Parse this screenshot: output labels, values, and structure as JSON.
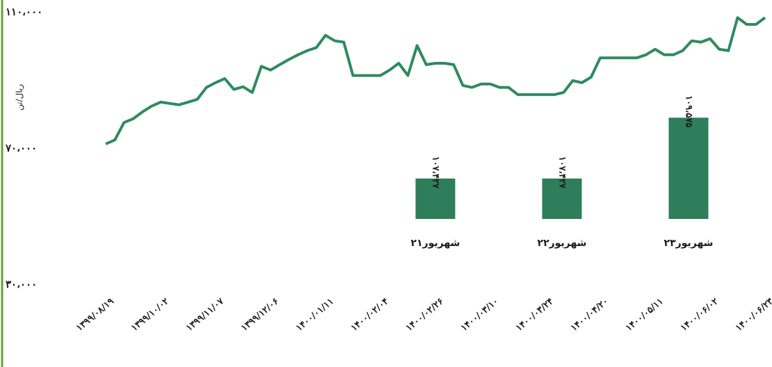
{
  "chart_data": [
    {
      "type": "line",
      "ylabel": "ریال/تن",
      "color": "#2f8a5f",
      "ylim": [
        30000,
        110000
      ],
      "yticks": [
        {
          "value": 30000,
          "label": "۳۰،۰۰۰"
        },
        {
          "value": 70000,
          "label": "۷۰،۰۰۰"
        },
        {
          "value": 110000,
          "label": "۱۱۰،۰۰۰"
        }
      ],
      "categories": [
        "۱۳۹۹/۰۸/۱۹",
        null,
        null,
        null,
        null,
        null,
        "۱۳۹۹/۱۰/۰۲",
        null,
        null,
        null,
        null,
        null,
        "۱۳۹۹/۱۱/۰۷",
        null,
        null,
        null,
        null,
        null,
        "۱۳۹۹/۱۲/۰۶",
        null,
        null,
        null,
        null,
        null,
        "۱۴۰۰/۰۱/۱۱",
        null,
        null,
        null,
        null,
        null,
        "۱۴۰۰/۰۲/۰۴",
        null,
        null,
        null,
        null,
        null,
        "۱۴۰۰/۰۲/۲۶",
        null,
        null,
        null,
        null,
        null,
        "۱۴۰۰/۰۳/۱۰",
        null,
        null,
        null,
        null,
        null,
        "۱۴۰۰/۰۳/۲۴",
        null,
        null,
        null,
        null,
        null,
        "۱۴۰۰/۰۴/۲۰",
        null,
        null,
        null,
        null,
        null,
        "۱۴۰۰/۰۵/۱۱",
        null,
        null,
        null,
        null,
        null,
        "۱۴۰۰/۰۶/۰۲",
        null,
        null,
        null,
        null,
        null,
        "۱۴۰۰/۰۶/۲۳"
      ],
      "values": [
        71400,
        72600,
        77700,
        78800,
        80800,
        82500,
        83700,
        83300,
        82900,
        83700,
        84500,
        88000,
        89400,
        90600,
        87400,
        88200,
        86500,
        94200,
        93100,
        94700,
        96200,
        97600,
        98800,
        99700,
        103300,
        101700,
        101300,
        91500,
        91500,
        91500,
        91500,
        93100,
        95100,
        91500,
        100300,
        94700,
        95100,
        95100,
        94700,
        88600,
        88000,
        89000,
        89000,
        88000,
        88000,
        85900,
        85900,
        85900,
        85900,
        85900,
        86500,
        90000,
        89400,
        91000,
        96700,
        96700,
        96700,
        96700,
        96700,
        97600,
        99200,
        97600,
        97600,
        98800,
        101700,
        101300,
        102300,
        99200,
        98800,
        108500,
        106500,
        106500,
        108500
      ]
    },
    {
      "type": "bar",
      "color": "#2e7d5b",
      "ylim": [
        106000,
        110000
      ],
      "categories": [
        "۲۱شهریور",
        "۲۲شهریور",
        "۲۳شهریور"
      ],
      "values": [
        107427,
        107427,
        109575
      ],
      "value_labels": [
        "۱۰۷،۴۲۷",
        "۱۰۷،۴۲۷",
        "۱۰۹،۵۷۵"
      ]
    }
  ]
}
